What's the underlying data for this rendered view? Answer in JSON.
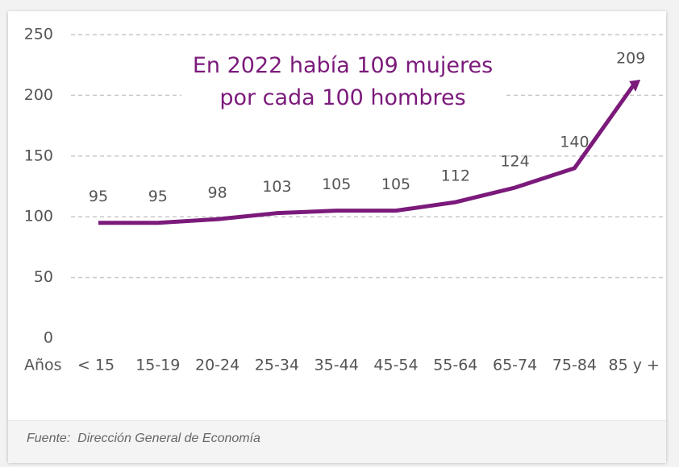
{
  "chart_data": {
    "type": "line",
    "title": "En 2022 había 109 mujeres por cada 100 hombres",
    "x_label": "Años",
    "categories": [
      "< 15",
      "15-19",
      "20-24",
      "25-34",
      "35-44",
      "45-54",
      "55-64",
      "65-74",
      "75-84",
      "85 y +"
    ],
    "values": [
      95,
      95,
      98,
      103,
      105,
      105,
      112,
      124,
      140,
      209
    ],
    "color": "#7b1a7b",
    "ylim": [
      0,
      250
    ],
    "yticks": [
      0,
      50,
      100,
      150,
      200,
      250
    ],
    "grid": true,
    "source": "Fuente:  Dirección General de Economía"
  }
}
